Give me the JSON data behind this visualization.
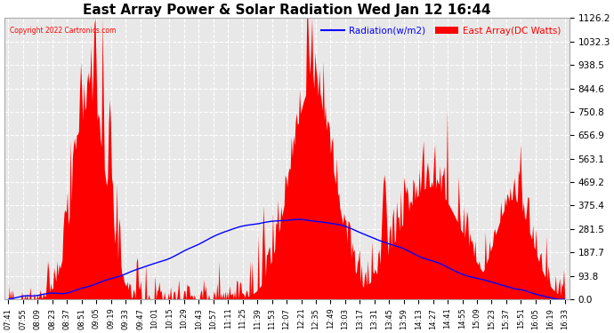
{
  "title": "East Array Power & Solar Radiation Wed Jan 12 16:44",
  "copyright": "Copyright 2022 Cartronics.com",
  "legend_radiation": "Radiation(w/m2)",
  "legend_east": "East Array(DC Watts)",
  "legend_radiation_color": "blue",
  "legend_east_color": "red",
  "yticks": [
    0.0,
    93.8,
    187.7,
    281.5,
    375.4,
    469.2,
    563.1,
    656.9,
    750.8,
    844.6,
    938.5,
    1032.3,
    1126.2
  ],
  "ylim": [
    0.0,
    1126.2
  ],
  "background_color": "#ffffff",
  "plot_background": "#e8e8e8",
  "grid_color": "#ffffff",
  "title_fontsize": 11,
  "xtick_fontsize": 6,
  "ytick_fontsize": 7.5,
  "x_labels": [
    "07:41",
    "07:55",
    "08:09",
    "08:23",
    "08:37",
    "08:51",
    "09:05",
    "09:19",
    "09:33",
    "09:47",
    "10:01",
    "10:15",
    "10:29",
    "10:43",
    "10:57",
    "11:11",
    "11:25",
    "11:39",
    "11:53",
    "12:07",
    "12:21",
    "12:35",
    "12:49",
    "13:03",
    "13:17",
    "13:31",
    "13:45",
    "13:59",
    "14:13",
    "14:27",
    "14:41",
    "14:55",
    "15:09",
    "15:23",
    "15:37",
    "15:51",
    "16:05",
    "16:19",
    "16:33"
  ]
}
